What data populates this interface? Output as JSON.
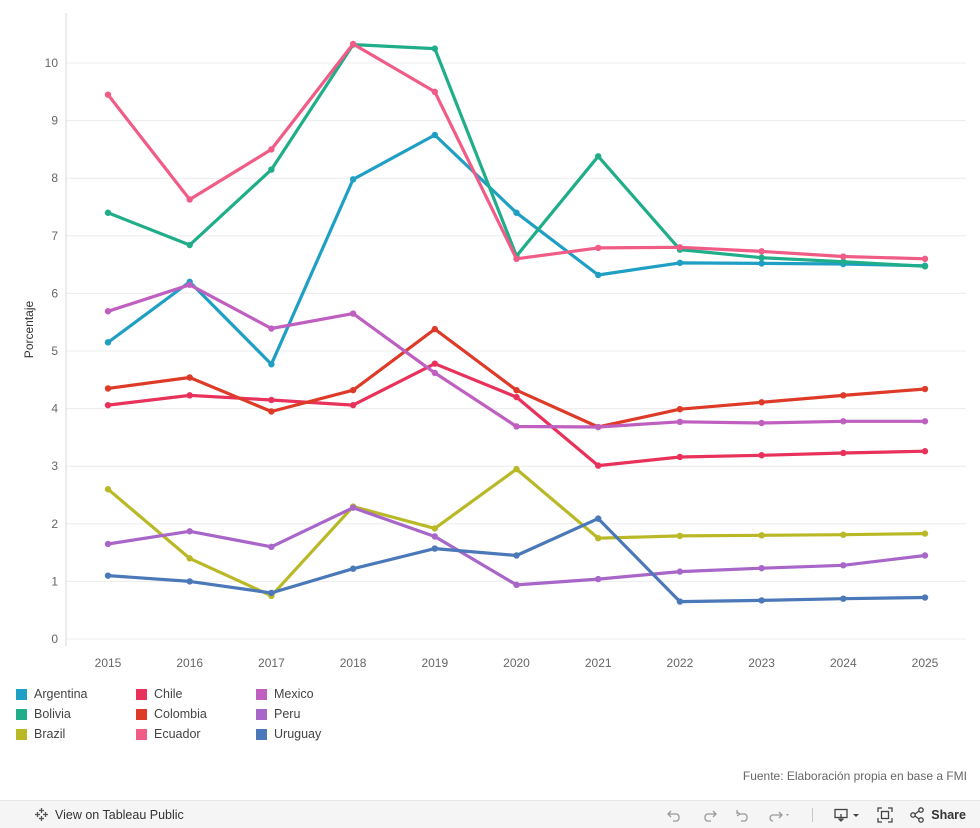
{
  "chart_data": {
    "type": "line",
    "ylabel": "Porcentaje",
    "xlabel": "",
    "ylim": [
      0,
      10.85
    ],
    "yticks": [
      0,
      1,
      2,
      3,
      4,
      5,
      6,
      7,
      8,
      9,
      10
    ],
    "categories": [
      "2015",
      "2016",
      "2017",
      "2018",
      "2019",
      "2020",
      "2021",
      "2022",
      "2023",
      "2024",
      "2025"
    ],
    "series": [
      {
        "name": "Argentina",
        "color": "#1f9fc4",
        "values": [
          5.15,
          6.2,
          4.77,
          7.98,
          8.75,
          7.4,
          6.32,
          6.53,
          6.52,
          6.51,
          6.48
        ]
      },
      {
        "name": "Bolivia",
        "color": "#20ad8a",
        "values": [
          7.4,
          6.84,
          8.15,
          10.32,
          10.25,
          6.65,
          8.38,
          6.76,
          6.62,
          6.55,
          6.47
        ]
      },
      {
        "name": "Brazil",
        "color": "#b9b928",
        "values": [
          2.6,
          1.4,
          0.75,
          2.3,
          1.92,
          2.95,
          1.75,
          1.79,
          1.8,
          1.81,
          1.83
        ]
      },
      {
        "name": "Chile",
        "color": "#e8325b",
        "values": [
          4.06,
          4.23,
          4.15,
          4.06,
          4.78,
          4.2,
          3.01,
          3.16,
          3.19,
          3.23,
          3.26
        ]
      },
      {
        "name": "Colombia",
        "color": "#de3a28",
        "values": [
          4.35,
          4.54,
          3.95,
          4.32,
          5.38,
          4.32,
          3.68,
          3.99,
          4.11,
          4.23,
          4.34
        ]
      },
      {
        "name": "Ecuador",
        "color": "#f05c86",
        "values": [
          9.45,
          7.63,
          8.5,
          10.33,
          9.5,
          6.6,
          6.79,
          6.8,
          6.73,
          6.64,
          6.6
        ]
      },
      {
        "name": "Mexico",
        "color": "#bf5fbf",
        "values": [
          5.69,
          6.15,
          5.39,
          5.65,
          4.62,
          3.69,
          3.68,
          3.77,
          3.75,
          3.78,
          3.78
        ]
      },
      {
        "name": "Peru",
        "color": "#a866c9",
        "values": [
          1.65,
          1.87,
          1.6,
          2.28,
          1.78,
          0.94,
          1.04,
          1.17,
          1.23,
          1.28,
          1.45
        ]
      },
      {
        "name": "Uruguay",
        "color": "#4a78b8",
        "values": [
          1.1,
          1.0,
          0.8,
          1.22,
          1.57,
          1.45,
          2.09,
          0.65,
          0.67,
          0.7,
          0.72
        ]
      }
    ],
    "grid": true,
    "legend_position": "bottom-left"
  },
  "source_text": "Fuente: Elaboración propia en base a FMI",
  "toolbar": {
    "view_label": "View on Tableau Public",
    "share_label": "Share"
  }
}
